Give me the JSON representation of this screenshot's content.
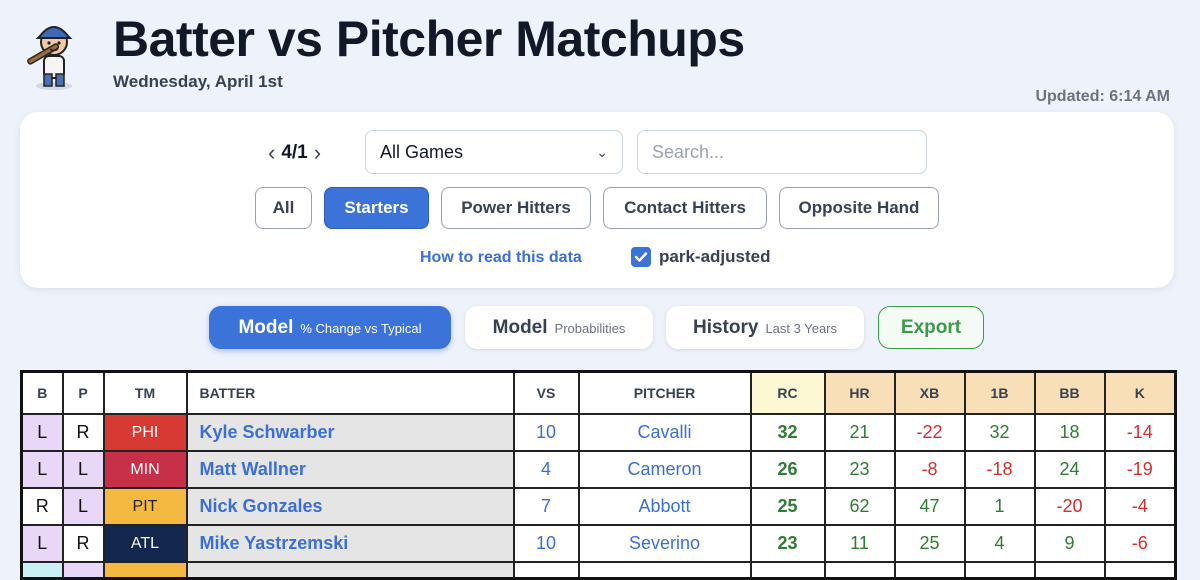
{
  "header": {
    "title": "Batter vs Pitcher Matchups",
    "date_long": "Wednesday, April 1st",
    "updated": "Updated: 6:14 AM"
  },
  "controls": {
    "prev_icon": "chevron-left-icon",
    "next_icon": "chevron-right-icon",
    "date_short": "4/1",
    "game_select_value": "All Games",
    "search_placeholder": "Search...",
    "filters": [
      "All",
      "Starters",
      "Power Hitters",
      "Contact Hitters",
      "Opposite Hand"
    ],
    "active_filter": "Starters",
    "how_to_link": "How to read this data",
    "park_adjusted_label": "park-adjusted",
    "park_adjusted_checked": true
  },
  "modes": [
    {
      "main": "Model",
      "sub": "% Change vs Typical",
      "active": true
    },
    {
      "main": "Model",
      "sub": "Probabilities",
      "active": false
    },
    {
      "main": "History",
      "sub": "Last 3 Years",
      "active": false
    }
  ],
  "export_label": "Export",
  "table": {
    "columns": [
      "B",
      "P",
      "TM",
      "BATTER",
      "VS",
      "PITCHER",
      "RC",
      "HR",
      "XB",
      "1B",
      "BB",
      "K"
    ],
    "rows": [
      {
        "b": "L",
        "p": "R",
        "tm": "PHI",
        "tm_color": "#d63a32",
        "batter": "Kyle Schwarber",
        "vs": "10",
        "pitcher": "Cavalli",
        "rc": "32",
        "hr": "21",
        "xb": "-22",
        "one_b": "32",
        "bb": "18",
        "k": "-14"
      },
      {
        "b": "L",
        "p": "L",
        "tm": "MIN",
        "tm_color": "#c8304a",
        "batter": "Matt Wallner",
        "vs": "4",
        "pitcher": "Cameron",
        "rc": "26",
        "hr": "23",
        "xb": "-8",
        "one_b": "-18",
        "bb": "24",
        "k": "-19"
      },
      {
        "b": "R",
        "p": "L",
        "tm": "PIT",
        "tm_color": "#f5b942",
        "batter": "Nick Gonzales",
        "vs": "7",
        "pitcher": "Abbott",
        "rc": "25",
        "hr": "62",
        "xb": "47",
        "one_b": "1",
        "bb": "-20",
        "k": "-4"
      },
      {
        "b": "L",
        "p": "R",
        "tm": "ATL",
        "tm_color": "#13274f",
        "batter": "Mike Yastrzemski",
        "vs": "10",
        "pitcher": "Severino",
        "rc": "23",
        "hr": "11",
        "xb": "25",
        "one_b": "4",
        "bb": "9",
        "k": "-6"
      }
    ]
  }
}
